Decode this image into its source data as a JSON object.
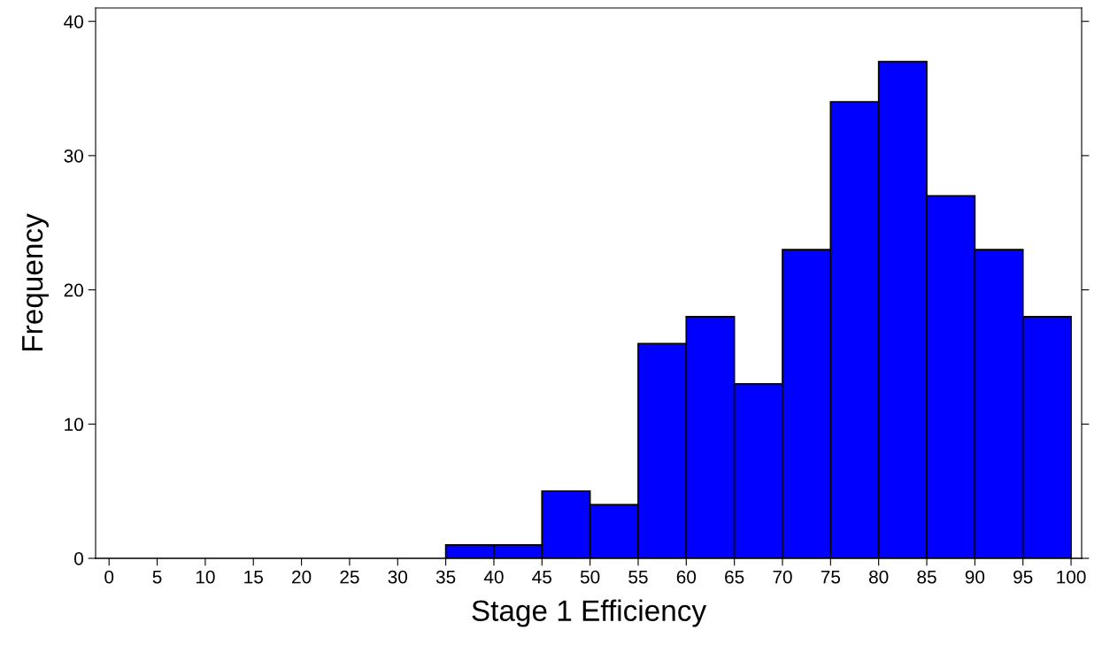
{
  "chart_data": {
    "type": "histogram",
    "xlabel": "Stage 1 Efficiency",
    "ylabel": "Frequency",
    "bins": [
      35,
      40,
      45,
      50,
      55,
      60,
      65,
      70,
      75,
      80,
      85,
      90,
      95,
      100
    ],
    "values": [
      1,
      1,
      5,
      4,
      16,
      18,
      13,
      23,
      34,
      37,
      27,
      23,
      18
    ],
    "color": "#0000ff",
    "xlim": [
      -1.4,
      101.1
    ],
    "ylim": [
      0,
      41
    ],
    "xticks": [
      0,
      5,
      10,
      15,
      20,
      25,
      30,
      35,
      40,
      45,
      50,
      55,
      60,
      65,
      70,
      75,
      80,
      85,
      90,
      95,
      100
    ],
    "yticks": [
      0,
      10,
      20,
      30,
      40
    ]
  }
}
